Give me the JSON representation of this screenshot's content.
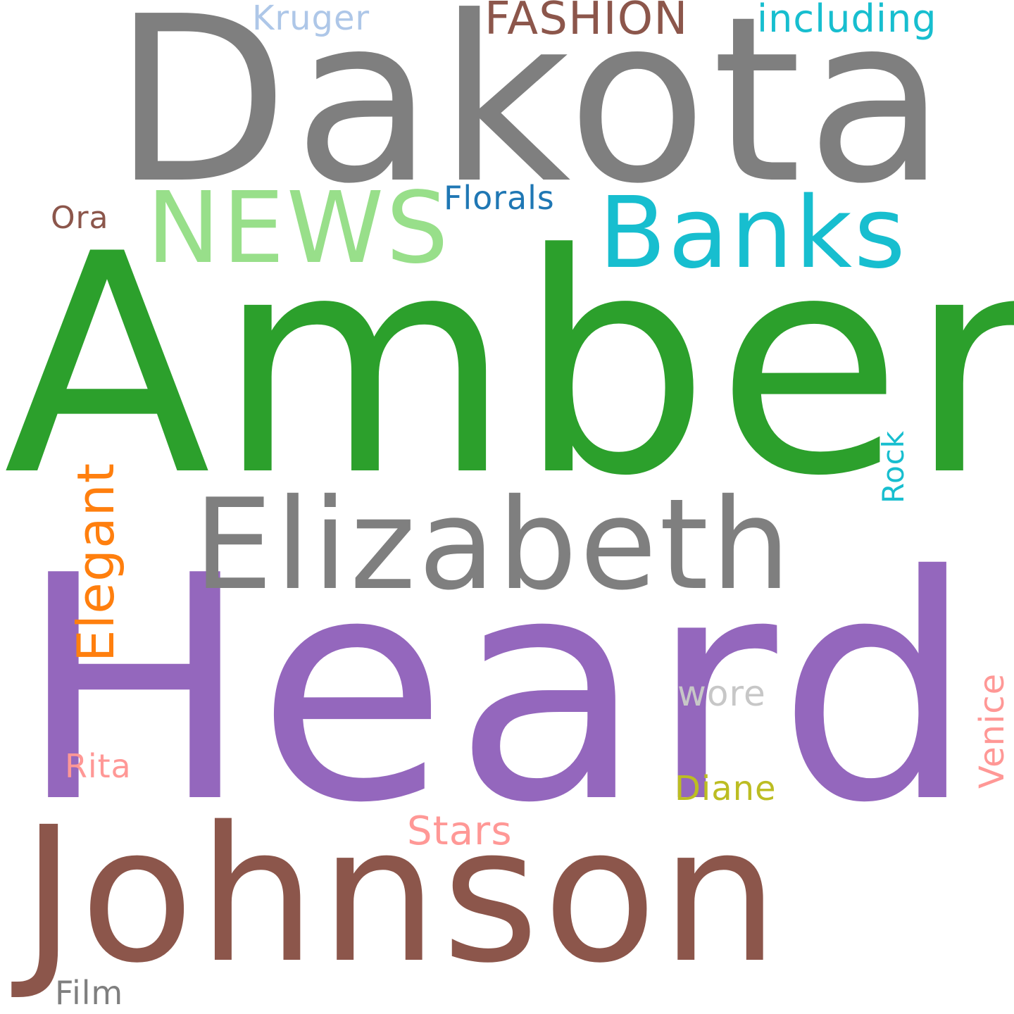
{
  "cloud": {
    "words": {
      "dakota": {
        "text": "Dakota",
        "color": "#7f7f7f"
      },
      "amber": {
        "text": "Amber",
        "color": "#2ca02c"
      },
      "heard": {
        "text": "Heard",
        "color": "#9467bd"
      },
      "johnson": {
        "text": "Johnson",
        "color": "#8c564b"
      },
      "elizabeth": {
        "text": "Elizabeth",
        "color": "#7f7f7f"
      },
      "news": {
        "text": "NEWS",
        "color": "#98df8a"
      },
      "banks": {
        "text": "Banks",
        "color": "#17becf"
      },
      "fashion": {
        "text": "FASHION",
        "color": "#8c564b"
      },
      "including": {
        "text": "including",
        "color": "#17becf"
      },
      "kruger": {
        "text": "Kruger",
        "color": "#aec7e8"
      },
      "florals": {
        "text": "Florals",
        "color": "#1f77b4"
      },
      "ora": {
        "text": "Ora",
        "color": "#8c564b"
      },
      "elegant": {
        "text": "Elegant",
        "color": "#ff7f0e"
      },
      "rock": {
        "text": "Rock",
        "color": "#17becf"
      },
      "venice": {
        "text": "Venice",
        "color": "#ff9896"
      },
      "wore": {
        "text": "wore",
        "color": "#c7c7c7"
      },
      "rita": {
        "text": "Rita",
        "color": "#ff9896"
      },
      "diane": {
        "text": "Diane",
        "color": "#bcbd22"
      },
      "stars": {
        "text": "Stars",
        "color": "#ff9896"
      },
      "film": {
        "text": "Film",
        "color": "#7f7f7f"
      }
    }
  }
}
